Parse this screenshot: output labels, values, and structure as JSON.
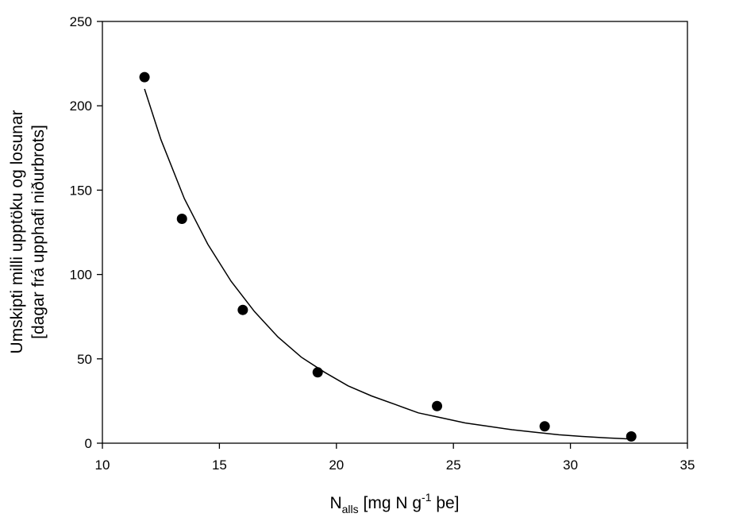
{
  "chart_data": {
    "type": "scatter",
    "xlabel": {
      "base": "N",
      "subscript": "alls",
      "pre": "[mg N g",
      "superscript": "-1",
      "post": " þe]"
    },
    "ylabel": {
      "line1": "Umskipti milli upptöku og losunar",
      "line2": "[dagar frá upphafi niðurbrots]"
    },
    "xlim": [
      10,
      35
    ],
    "ylim": [
      0,
      250
    ],
    "xticks": [
      10,
      15,
      20,
      25,
      30,
      35
    ],
    "yticks": [
      0,
      50,
      100,
      150,
      200,
      250
    ],
    "grid": false,
    "series": [
      {
        "points": [
          {
            "x": 11.8,
            "y": 217
          },
          {
            "x": 13.4,
            "y": 133
          },
          {
            "x": 16.0,
            "y": 79
          },
          {
            "x": 19.2,
            "y": 42
          },
          {
            "x": 24.3,
            "y": 22
          },
          {
            "x": 28.9,
            "y": 10
          },
          {
            "x": 32.6,
            "y": 4
          }
        ],
        "marker_color": "#000000"
      }
    ],
    "fit_curve": {
      "type": "line",
      "x": [
        11.8,
        12.5,
        13.5,
        14.5,
        15.5,
        16.5,
        17.5,
        18.5,
        19.5,
        20.5,
        21.5,
        22.5,
        23.5,
        24.5,
        25.5,
        26.5,
        27.5,
        28.5,
        29.5,
        30.5,
        31.5,
        32.6
      ],
      "y": [
        210,
        180,
        145,
        118,
        96,
        78,
        63,
        51,
        42,
        34,
        28,
        23,
        18,
        15,
        12,
        10,
        8,
        6.5,
        5,
        4,
        3.2,
        2.5
      ],
      "color": "#000000"
    }
  }
}
